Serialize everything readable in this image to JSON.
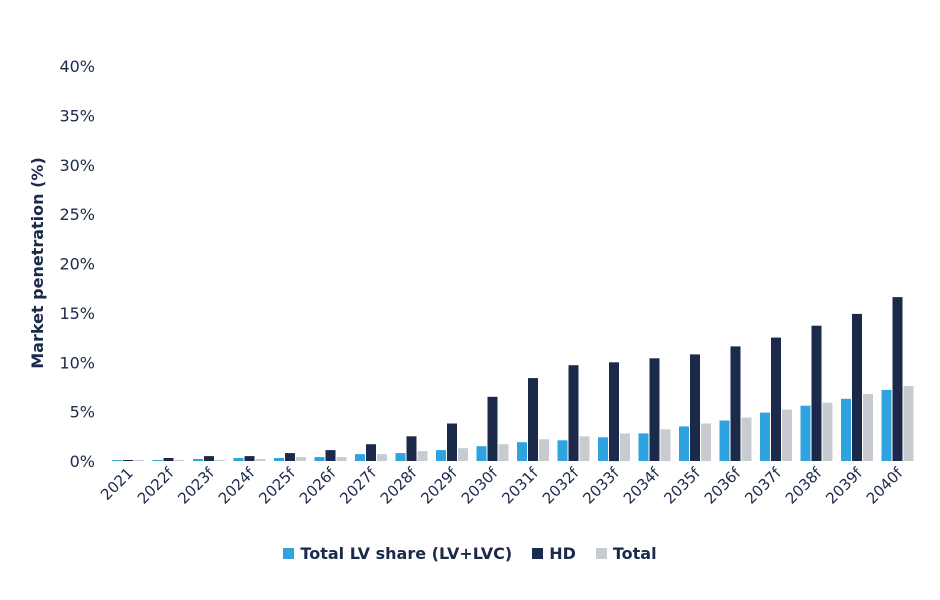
{
  "chart_data": {
    "type": "bar",
    "ylabel": "Market penetration (%)",
    "ylim": [
      0,
      40
    ],
    "yticks": [
      "0%",
      "5%",
      "10%",
      "15%",
      "20%",
      "25%",
      "30%",
      "35%",
      "40%"
    ],
    "categories": [
      "2021",
      "2022f",
      "2023f",
      "2024f",
      "2025f",
      "2026f",
      "2027f",
      "2028f",
      "2029f",
      "2030f",
      "2031f",
      "2032f",
      "2033f",
      "2034f",
      "2035f",
      "2036f",
      "2037f",
      "2038f",
      "2039f",
      "2040f"
    ],
    "series": [
      {
        "name": "Total LV share (LV+LVC)",
        "color": "#2ea3e0",
        "values": [
          0.1,
          0.1,
          0.2,
          0.3,
          0.3,
          0.4,
          0.7,
          0.8,
          1.1,
          1.5,
          1.9,
          2.1,
          2.4,
          2.8,
          3.5,
          4.1,
          4.9,
          5.6,
          6.3,
          7.2
        ]
      },
      {
        "name": "HD",
        "color": "#1b2a4a",
        "values": [
          0.1,
          0.3,
          0.5,
          0.5,
          0.8,
          1.1,
          1.7,
          2.5,
          3.8,
          6.5,
          8.4,
          9.7,
          10.0,
          10.4,
          10.8,
          11.6,
          12.5,
          13.7,
          14.9,
          16.6
        ]
      },
      {
        "name": "Total",
        "color": "#c8ccd1",
        "values": [
          0.1,
          0.1,
          0.1,
          0.2,
          0.4,
          0.4,
          0.7,
          1.0,
          1.3,
          1.7,
          2.2,
          2.5,
          2.8,
          3.2,
          3.8,
          4.4,
          5.2,
          5.9,
          6.8,
          7.6
        ]
      }
    ],
    "legend_position": "bottom",
    "grid": false
  }
}
